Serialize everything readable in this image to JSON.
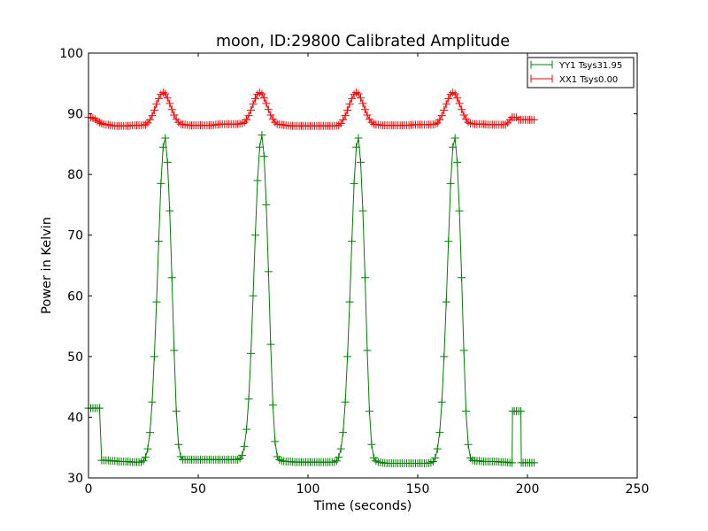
{
  "chart_data": {
    "type": "line",
    "title": "moon, ID:29800 Calibrated Amplitude",
    "xlabel": "Time (seconds)",
    "ylabel": "Power in Kelvin",
    "xlim": [
      0,
      250
    ],
    "ylim": [
      30,
      100
    ],
    "xticks": [
      0,
      50,
      100,
      150,
      200,
      250
    ],
    "yticks": [
      30,
      40,
      50,
      60,
      70,
      80,
      90,
      100
    ],
    "grid": false,
    "legend_position": "top-right",
    "sample_interval": 1,
    "series": [
      {
        "name": "YY1 Tsys31.95",
        "color": "#008000",
        "marker": "+",
        "points": [
          [
            0,
            41.5
          ],
          [
            1,
            41.5
          ],
          [
            2,
            41.5
          ],
          [
            3,
            41.5
          ],
          [
            4,
            41.5
          ],
          [
            5,
            41.5
          ],
          [
            6,
            32.9
          ],
          [
            7,
            32.9
          ],
          [
            8,
            32.9
          ],
          [
            9,
            32.9
          ],
          [
            10,
            32.8
          ],
          [
            12,
            32.8
          ],
          [
            14,
            32.7
          ],
          [
            16,
            32.7
          ],
          [
            18,
            32.7
          ],
          [
            20,
            32.6
          ],
          [
            22,
            32.6
          ],
          [
            24,
            32.6
          ],
          [
            25,
            32.8
          ],
          [
            26,
            33.4
          ],
          [
            27,
            34.8
          ],
          [
            28,
            37.5
          ],
          [
            29,
            42.5
          ],
          [
            30,
            50
          ],
          [
            31,
            59
          ],
          [
            32,
            69
          ],
          [
            33,
            78.5
          ],
          [
            34,
            84.5
          ],
          [
            35,
            86
          ],
          [
            36,
            82
          ],
          [
            37,
            74
          ],
          [
            38,
            63
          ],
          [
            39,
            51
          ],
          [
            40,
            41
          ],
          [
            41,
            35.5
          ],
          [
            42,
            33.5
          ],
          [
            43,
            33
          ],
          [
            44,
            33
          ],
          [
            46,
            33
          ],
          [
            48,
            33
          ],
          [
            50,
            33
          ],
          [
            52,
            33
          ],
          [
            54,
            33
          ],
          [
            56,
            33
          ],
          [
            58,
            33
          ],
          [
            60,
            33
          ],
          [
            62,
            33
          ],
          [
            64,
            33
          ],
          [
            66,
            33
          ],
          [
            68,
            33
          ],
          [
            69,
            33.2
          ],
          [
            70,
            33.7
          ],
          [
            71,
            35.2
          ],
          [
            72,
            38
          ],
          [
            73,
            43
          ],
          [
            74,
            50.5
          ],
          [
            75,
            60
          ],
          [
            76,
            70
          ],
          [
            77,
            79
          ],
          [
            78,
            84.5
          ],
          [
            79,
            86.5
          ],
          [
            80,
            83
          ],
          [
            81,
            75
          ],
          [
            82,
            64
          ],
          [
            83,
            52
          ],
          [
            84,
            42
          ],
          [
            85,
            36
          ],
          [
            86,
            33.5
          ],
          [
            87,
            33
          ],
          [
            88,
            32.8
          ],
          [
            90,
            32.7
          ],
          [
            92,
            32.7
          ],
          [
            94,
            32.6
          ],
          [
            96,
            32.6
          ],
          [
            98,
            32.6
          ],
          [
            100,
            32.6
          ],
          [
            102,
            32.6
          ],
          [
            104,
            32.6
          ],
          [
            106,
            32.6
          ],
          [
            108,
            32.6
          ],
          [
            110,
            32.6
          ],
          [
            112,
            32.6
          ],
          [
            113,
            32.8
          ],
          [
            114,
            33.4
          ],
          [
            115,
            34.8
          ],
          [
            116,
            37.5
          ],
          [
            117,
            42.5
          ],
          [
            118,
            50
          ],
          [
            119,
            59
          ],
          [
            120,
            69
          ],
          [
            121,
            78.5
          ],
          [
            122,
            84.5
          ],
          [
            123,
            86
          ],
          [
            124,
            82
          ],
          [
            125,
            74
          ],
          [
            126,
            63
          ],
          [
            127,
            51
          ],
          [
            128,
            41
          ],
          [
            129,
            35.5
          ],
          [
            130,
            33.3
          ],
          [
            131,
            32.8
          ],
          [
            132,
            32.6
          ],
          [
            134,
            32.5
          ],
          [
            136,
            32.4
          ],
          [
            138,
            32.4
          ],
          [
            140,
            32.4
          ],
          [
            142,
            32.4
          ],
          [
            144,
            32.4
          ],
          [
            146,
            32.4
          ],
          [
            148,
            32.4
          ],
          [
            150,
            32.4
          ],
          [
            152,
            32.4
          ],
          [
            154,
            32.4
          ],
          [
            156,
            32.5
          ],
          [
            157,
            32.7
          ],
          [
            158,
            33.3
          ],
          [
            159,
            34.8
          ],
          [
            160,
            37.5
          ],
          [
            161,
            42.5
          ],
          [
            162,
            50
          ],
          [
            163,
            59
          ],
          [
            164,
            69
          ],
          [
            165,
            78.5
          ],
          [
            166,
            84.5
          ],
          [
            167,
            86
          ],
          [
            168,
            82
          ],
          [
            169,
            74
          ],
          [
            170,
            63
          ],
          [
            171,
            51
          ],
          [
            172,
            41
          ],
          [
            173,
            35.5
          ],
          [
            174,
            33.3
          ],
          [
            175,
            32.9
          ],
          [
            176,
            32.8
          ],
          [
            178,
            32.8
          ],
          [
            180,
            32.7
          ],
          [
            182,
            32.7
          ],
          [
            184,
            32.7
          ],
          [
            186,
            32.7
          ],
          [
            188,
            32.6
          ],
          [
            190,
            32.6
          ],
          [
            192,
            32.5
          ],
          [
            193,
            32.5
          ],
          [
            193.2,
            41
          ],
          [
            194,
            41
          ],
          [
            195,
            41
          ],
          [
            196,
            41
          ],
          [
            197,
            41
          ],
          [
            197.2,
            32.5
          ],
          [
            198,
            32.5
          ],
          [
            199,
            32.5
          ],
          [
            200,
            32.5
          ],
          [
            201,
            32.5
          ],
          [
            202,
            32.5
          ],
          [
            203,
            32.5
          ]
        ]
      },
      {
        "name": "XX1 Tsys0.00",
        "color": "#ff0000",
        "marker": "+",
        "points": [
          [
            0,
            89.4
          ],
          [
            1,
            89.4
          ],
          [
            2,
            89.3
          ],
          [
            3,
            89.1
          ],
          [
            4,
            88.8
          ],
          [
            5,
            88.6
          ],
          [
            6,
            88.4
          ],
          [
            7,
            88.3
          ],
          [
            8,
            88.2
          ],
          [
            9,
            88.2
          ],
          [
            10,
            88.1
          ],
          [
            12,
            88
          ],
          [
            14,
            88
          ],
          [
            16,
            88
          ],
          [
            18,
            88
          ],
          [
            20,
            88.1
          ],
          [
            22,
            88.1
          ],
          [
            24,
            88.1
          ],
          [
            26,
            88.2
          ],
          [
            27,
            88.5
          ],
          [
            28,
            89
          ],
          [
            29,
            89.7
          ],
          [
            30,
            90.6
          ],
          [
            31,
            91.6
          ],
          [
            32,
            92.5
          ],
          [
            33,
            93.2
          ],
          [
            34,
            93.5
          ],
          [
            35,
            93.3
          ],
          [
            36,
            92.6
          ],
          [
            37,
            91.7
          ],
          [
            38,
            90.7
          ],
          [
            39,
            89.8
          ],
          [
            40,
            89.1
          ],
          [
            41,
            88.6
          ],
          [
            42,
            88.3
          ],
          [
            44,
            88.2
          ],
          [
            46,
            88.1
          ],
          [
            48,
            88.1
          ],
          [
            50,
            88.1
          ],
          [
            52,
            88.1
          ],
          [
            54,
            88.1
          ],
          [
            56,
            88.1
          ],
          [
            58,
            88.2
          ],
          [
            60,
            88.3
          ],
          [
            62,
            88.3
          ],
          [
            64,
            88.3
          ],
          [
            66,
            88.3
          ],
          [
            68,
            88.3
          ],
          [
            70,
            88.4
          ],
          [
            71,
            88.6
          ],
          [
            72,
            89
          ],
          [
            73,
            89.7
          ],
          [
            74,
            90.6
          ],
          [
            75,
            91.6
          ],
          [
            76,
            92.5
          ],
          [
            77,
            93.2
          ],
          [
            78,
            93.5
          ],
          [
            79,
            93.3
          ],
          [
            80,
            92.6
          ],
          [
            81,
            91.7
          ],
          [
            82,
            90.7
          ],
          [
            83,
            89.8
          ],
          [
            84,
            89.1
          ],
          [
            85,
            88.6
          ],
          [
            86,
            88.3
          ],
          [
            88,
            88.2
          ],
          [
            90,
            88.1
          ],
          [
            92,
            88
          ],
          [
            94,
            88
          ],
          [
            96,
            88
          ],
          [
            98,
            88
          ],
          [
            100,
            88
          ],
          [
            102,
            88
          ],
          [
            104,
            88
          ],
          [
            106,
            88
          ],
          [
            108,
            88
          ],
          [
            110,
            88
          ],
          [
            112,
            88
          ],
          [
            114,
            88.1
          ],
          [
            115,
            88.4
          ],
          [
            116,
            89
          ],
          [
            117,
            89.7
          ],
          [
            118,
            90.6
          ],
          [
            119,
            91.6
          ],
          [
            120,
            92.5
          ],
          [
            121,
            93.2
          ],
          [
            122,
            93.5
          ],
          [
            123,
            93.3
          ],
          [
            124,
            92.6
          ],
          [
            125,
            91.7
          ],
          [
            126,
            90.7
          ],
          [
            127,
            89.8
          ],
          [
            128,
            89.1
          ],
          [
            129,
            88.6
          ],
          [
            130,
            88.3
          ],
          [
            132,
            88.2
          ],
          [
            134,
            88.1
          ],
          [
            136,
            88.1
          ],
          [
            138,
            88.1
          ],
          [
            140,
            88.1
          ],
          [
            142,
            88.1
          ],
          [
            144,
            88.1
          ],
          [
            146,
            88.1
          ],
          [
            148,
            88.2
          ],
          [
            150,
            88.2
          ],
          [
            152,
            88.2
          ],
          [
            154,
            88.2
          ],
          [
            156,
            88.2
          ],
          [
            158,
            88.3
          ],
          [
            159,
            88.5
          ],
          [
            160,
            89
          ],
          [
            161,
            89.7
          ],
          [
            162,
            90.6
          ],
          [
            163,
            91.6
          ],
          [
            164,
            92.5
          ],
          [
            165,
            93.2
          ],
          [
            166,
            93.5
          ],
          [
            167,
            93.3
          ],
          [
            168,
            92.6
          ],
          [
            169,
            91.7
          ],
          [
            170,
            90.7
          ],
          [
            171,
            89.8
          ],
          [
            172,
            89.1
          ],
          [
            173,
            88.6
          ],
          [
            174,
            88.4
          ],
          [
            176,
            88.3
          ],
          [
            178,
            88.3
          ],
          [
            180,
            88.3
          ],
          [
            182,
            88.2
          ],
          [
            184,
            88.2
          ],
          [
            186,
            88.2
          ],
          [
            188,
            88.2
          ],
          [
            190,
            88.2
          ],
          [
            191,
            88.5
          ],
          [
            192,
            89
          ],
          [
            193,
            89.4
          ],
          [
            194,
            89.4
          ],
          [
            195,
            89.4
          ],
          [
            196,
            89
          ],
          [
            197,
            89
          ],
          [
            198,
            89
          ],
          [
            199,
            89
          ],
          [
            200,
            89
          ],
          [
            201,
            89
          ],
          [
            202,
            89
          ],
          [
            203,
            89
          ]
        ]
      }
    ]
  }
}
